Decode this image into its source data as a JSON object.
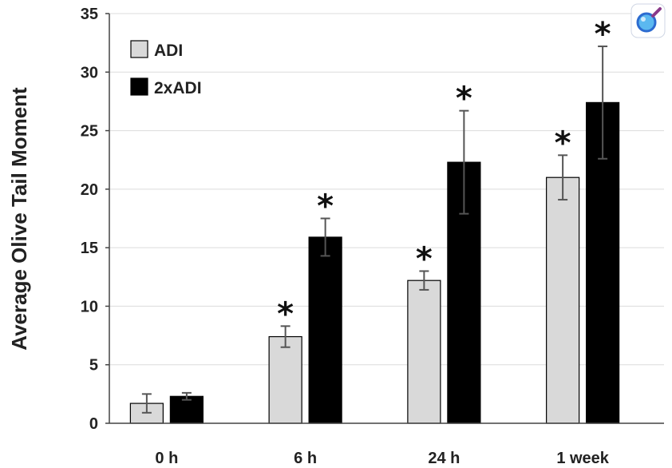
{
  "chart_data": {
    "type": "bar",
    "title": "",
    "xlabel": "",
    "ylabel": "Average Olive Tail Moment",
    "ylim": [
      0,
      35
    ],
    "yticks": [
      0,
      5,
      10,
      15,
      20,
      25,
      30,
      35
    ],
    "grid": "horizontal",
    "legend_position": "top-left",
    "categories": [
      "0 h",
      "6 h",
      "24 h",
      "1 week"
    ],
    "series": [
      {
        "name": "ADI",
        "color": "#d9d9d9",
        "values": [
          1.7,
          7.4,
          12.2,
          21.0
        ],
        "error": [
          0.8,
          0.9,
          0.8,
          1.9
        ],
        "significant": [
          false,
          true,
          true,
          true
        ]
      },
      {
        "name": "2xADI",
        "color": "#000000",
        "values": [
          2.3,
          15.9,
          22.3,
          27.4
        ],
        "error": [
          0.3,
          1.6,
          4.4,
          4.8
        ],
        "significant": [
          false,
          true,
          true,
          true
        ]
      }
    ],
    "significance_marker": "*"
  },
  "badge": {
    "icon": "magnifier-icon",
    "accent": "#3a6fd8",
    "handle": "#8a3a8a"
  }
}
